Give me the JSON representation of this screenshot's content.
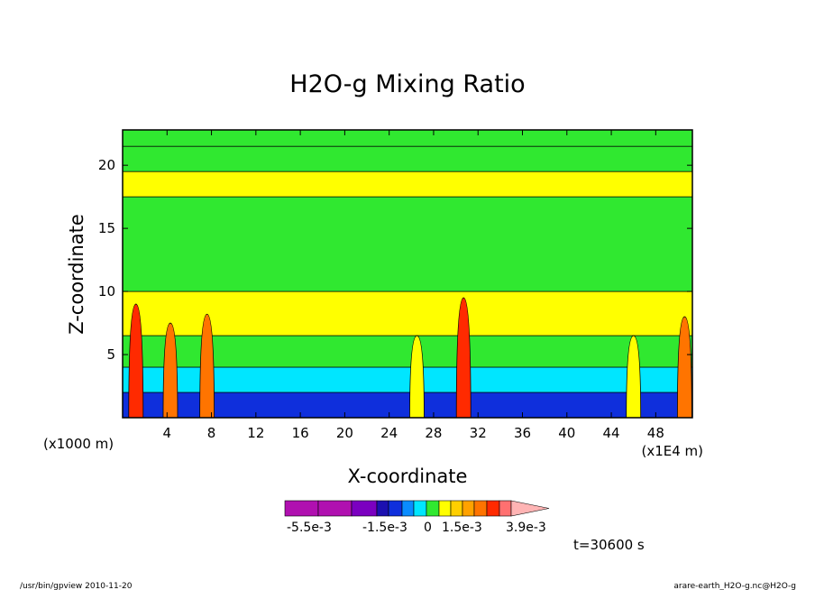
{
  "chart_data": {
    "type": "heatmap",
    "title": "H2O-g Mixing Ratio",
    "xlabel": "X-coordinate",
    "ylabel": "Z-coordinate",
    "x_unit_left": "(x1000 m)",
    "x_unit_right": "(x1E4 m)",
    "x_ticks": [
      4,
      8,
      12,
      16,
      20,
      24,
      28,
      32,
      36,
      40,
      44,
      48
    ],
    "y_ticks": [
      5,
      10,
      15,
      20
    ],
    "xlim": [
      0,
      51.3
    ],
    "ylim": [
      0,
      22.8
    ],
    "colorbar": {
      "labels": [
        "-5.5e-3",
        "-1.5e-3",
        "0",
        "1.5e-3",
        "3.9e-3"
      ],
      "colors": [
        "#b010b0",
        "#b010b0",
        "#7b00c0",
        "#1c10b0",
        "#0f2fdc",
        "#0a8cff",
        "#00e6ff",
        "#30e830",
        "#ffff00",
        "#ffcf00",
        "#ffa200",
        "#ff7400",
        "#ff2a00",
        "#ff7070",
        "#ffb4b4"
      ]
    },
    "time_label": "t=30600 s",
    "bands": [
      {
        "z": 21.5,
        "category": "green"
      },
      {
        "z": 19.5,
        "category": "yellow"
      },
      {
        "z": 17.5,
        "category": "green"
      },
      {
        "z": 10.0,
        "category": "yellow"
      },
      {
        "z": 6.5,
        "category": "green"
      },
      {
        "z": 4.0,
        "category": "cyan"
      },
      {
        "z": 2.0,
        "category": "blue"
      }
    ],
    "columns": [
      {
        "x": 1.2,
        "zmax": 9.0,
        "category": "red"
      },
      {
        "x": 4.3,
        "zmax": 7.5,
        "category": "orange"
      },
      {
        "x": 7.6,
        "zmax": 8.2,
        "category": "orange"
      },
      {
        "x": 26.5,
        "zmax": 6.5,
        "category": "yellow"
      },
      {
        "x": 30.7,
        "zmax": 9.5,
        "category": "red"
      },
      {
        "x": 46.0,
        "zmax": 6.5,
        "category": "yellow"
      },
      {
        "x": 50.6,
        "zmax": 8.0,
        "category": "orange"
      }
    ]
  },
  "footer": {
    "left": "/usr/bin/gpview   2010-11-20",
    "right": "arare-earth_H2O-g.nc@H2O-g"
  }
}
